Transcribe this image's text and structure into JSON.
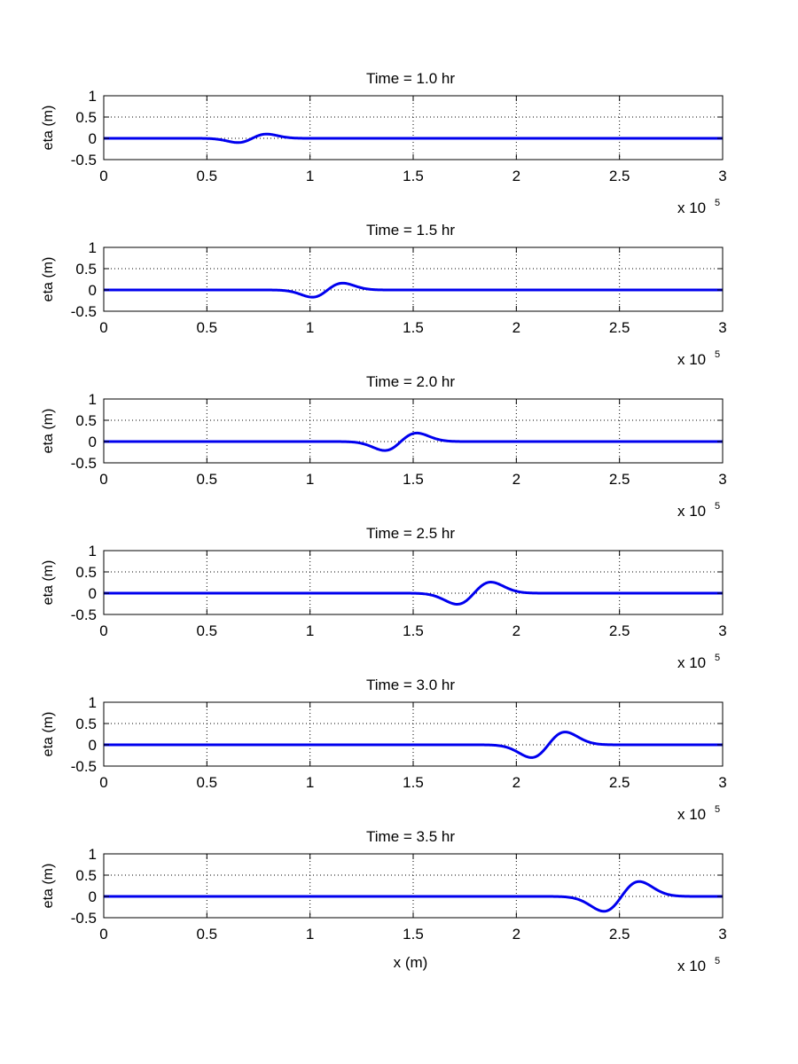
{
  "figure": {
    "xlabel": "x (m)"
  },
  "chart_data": [
    {
      "type": "line",
      "title": "Time = 1.0 hr",
      "ylabel": "eta (m)",
      "xlabel": "",
      "x_multiplier_label": "x 10",
      "x_multiplier_exponent": "5",
      "xlim": [
        0,
        300000
      ],
      "ylim": [
        -0.5,
        1
      ],
      "xticks": [
        0,
        50000,
        100000,
        150000,
        200000,
        250000,
        300000
      ],
      "xtick_labels": [
        "0",
        "0.5",
        "1",
        "1.5",
        "2",
        "2.5",
        "3"
      ],
      "yticks": [
        -0.5,
        0,
        0.5,
        1
      ],
      "ytick_labels": [
        "-0.5",
        "0",
        "0.5",
        "1"
      ],
      "grid": true,
      "line_color": "#0000ee",
      "wave": {
        "trough_x": 63000,
        "trough_eta": -0.1,
        "crest_x": 81000,
        "crest_eta": 0.1
      }
    },
    {
      "type": "line",
      "title": "Time = 1.5 hr",
      "ylabel": "eta (m)",
      "xlabel": "",
      "x_multiplier_label": "x 10",
      "x_multiplier_exponent": "5",
      "xlim": [
        0,
        300000
      ],
      "ylim": [
        -0.5,
        1
      ],
      "xticks": [
        0,
        50000,
        100000,
        150000,
        200000,
        250000,
        300000
      ],
      "xtick_labels": [
        "0",
        "0.5",
        "1",
        "1.5",
        "2",
        "2.5",
        "3"
      ],
      "yticks": [
        -0.5,
        0,
        0.5,
        1
      ],
      "ytick_labels": [
        "-0.5",
        "0",
        "0.5",
        "1"
      ],
      "grid": true,
      "line_color": "#0000ee",
      "wave": {
        "trough_x": 99000,
        "trough_eta": -0.17,
        "crest_x": 118000,
        "crest_eta": 0.16
      }
    },
    {
      "type": "line",
      "title": "Time = 2.0 hr",
      "ylabel": "eta (m)",
      "xlabel": "",
      "x_multiplier_label": "x 10",
      "x_multiplier_exponent": "5",
      "xlim": [
        0,
        300000
      ],
      "ylim": [
        -0.5,
        1
      ],
      "xticks": [
        0,
        50000,
        100000,
        150000,
        200000,
        250000,
        300000
      ],
      "xtick_labels": [
        "0",
        "0.5",
        "1",
        "1.5",
        "2",
        "2.5",
        "3"
      ],
      "yticks": [
        -0.5,
        0,
        0.5,
        1
      ],
      "ytick_labels": [
        "-0.5",
        "0",
        "0.5",
        "1"
      ],
      "grid": true,
      "line_color": "#0000ee",
      "wave": {
        "trough_x": 134000,
        "trough_eta": -0.21,
        "crest_x": 154000,
        "crest_eta": 0.2
      }
    },
    {
      "type": "line",
      "title": "Time = 2.5 hr",
      "ylabel": "eta (m)",
      "xlabel": "",
      "x_multiplier_label": "x 10",
      "x_multiplier_exponent": "5",
      "xlim": [
        0,
        300000
      ],
      "ylim": [
        -0.5,
        1
      ],
      "xticks": [
        0,
        50000,
        100000,
        150000,
        200000,
        250000,
        300000
      ],
      "xtick_labels": [
        "0",
        "0.5",
        "1",
        "1.5",
        "2",
        "2.5",
        "3"
      ],
      "yticks": [
        -0.5,
        0,
        0.5,
        1
      ],
      "ytick_labels": [
        "-0.5",
        "0",
        "0.5",
        "1"
      ],
      "grid": true,
      "line_color": "#0000ee",
      "wave": {
        "trough_x": 169000,
        "trough_eta": -0.26,
        "crest_x": 190000,
        "crest_eta": 0.26
      }
    },
    {
      "type": "line",
      "title": "Time = 3.0 hr",
      "ylabel": "eta (m)",
      "xlabel": "",
      "x_multiplier_label": "x 10",
      "x_multiplier_exponent": "5",
      "xlim": [
        0,
        300000
      ],
      "ylim": [
        -0.5,
        1
      ],
      "xticks": [
        0,
        50000,
        100000,
        150000,
        200000,
        250000,
        300000
      ],
      "xtick_labels": [
        "0",
        "0.5",
        "1",
        "1.5",
        "2",
        "2.5",
        "3"
      ],
      "yticks": [
        -0.5,
        0,
        0.5,
        1
      ],
      "ytick_labels": [
        "-0.5",
        "0",
        "0.5",
        "1"
      ],
      "grid": true,
      "line_color": "#0000ee",
      "wave": {
        "trough_x": 205000,
        "trough_eta": -0.3,
        "crest_x": 226000,
        "crest_eta": 0.3
      }
    },
    {
      "type": "line",
      "title": "Time = 3.5 hr",
      "ylabel": "eta (m)",
      "xlabel": "x (m)",
      "x_multiplier_label": "x 10",
      "x_multiplier_exponent": "5",
      "xlim": [
        0,
        300000
      ],
      "ylim": [
        -0.5,
        1
      ],
      "xticks": [
        0,
        50000,
        100000,
        150000,
        200000,
        250000,
        300000
      ],
      "xtick_labels": [
        "0",
        "0.5",
        "1",
        "1.5",
        "2",
        "2.5",
        "3"
      ],
      "yticks": [
        -0.5,
        0,
        0.5,
        1
      ],
      "ytick_labels": [
        "-0.5",
        "0",
        "0.5",
        "1"
      ],
      "grid": true,
      "line_color": "#0000ee",
      "wave": {
        "trough_x": 240000,
        "trough_eta": -0.35,
        "crest_x": 262000,
        "crest_eta": 0.35
      }
    }
  ]
}
